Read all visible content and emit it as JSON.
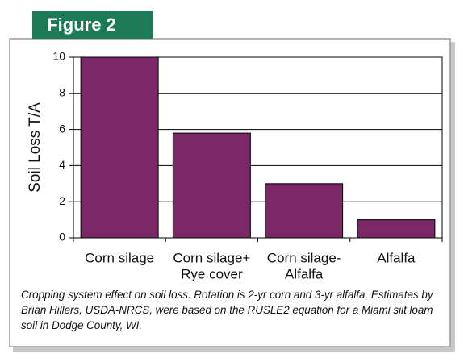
{
  "figure_label": "Figure 2",
  "caption": "Cropping system effect on soil loss. Rotation is 2-yr corn and 3-yr alfalfa. Estimates by Brian Hillers, USDA-NRCS, were based on the RUSLE2 equation for a Miami silt loam soil in Dodge County, WI.",
  "chart_data": {
    "type": "bar",
    "y_label": "Soil Loss T/A",
    "categories": [
      [
        "Corn silage"
      ],
      [
        "Corn silage+",
        "Rye cover"
      ],
      [
        "Corn silage-",
        "Alfalfa"
      ],
      [
        "Alfalfa"
      ]
    ],
    "values": [
      10,
      5.8,
      3,
      1
    ],
    "color": "#7a2866",
    "ylim": [
      0,
      10
    ],
    "yticks": [
      0,
      2,
      4,
      6,
      8,
      10
    ],
    "grid": true
  }
}
